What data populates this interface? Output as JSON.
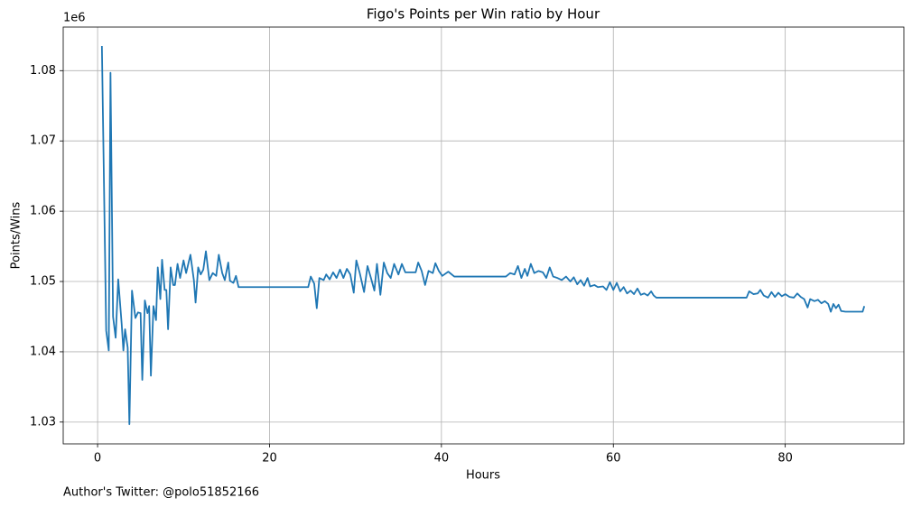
{
  "chart_data": {
    "type": "line",
    "title": "Figo's Points per Win ratio by Hour",
    "xlabel": "Hours",
    "ylabel": "Points/Wins",
    "y_offset_label": "1e6",
    "footnote": "Author's Twitter: @polo51852166",
    "x": [
      0.5,
      1.0,
      1.3,
      1.5,
      1.8,
      2.1,
      2.4,
      2.8,
      3.0,
      3.2,
      3.5,
      3.7,
      4.0,
      4.4,
      4.7,
      5.0,
      5.2,
      5.5,
      5.8,
      6.0,
      6.2,
      6.5,
      6.8,
      7.0,
      7.3,
      7.5,
      7.8,
      8.0,
      8.2,
      8.5,
      8.8,
      9.0,
      9.3,
      9.6,
      10,
      10.3,
      10.8,
      11.2,
      11.4,
      11.7,
      12,
      12.3,
      12.6,
      13,
      13.4,
      13.8,
      14.1,
      14.5,
      14.8,
      15.2,
      15.4,
      15.8,
      16.1,
      16.4,
      24.5,
      24.8,
      25.2,
      25.5,
      25.8,
      26.3,
      26.6,
      27,
      27.4,
      27.8,
      28.2,
      28.6,
      29,
      29.4,
      29.8,
      30.1,
      30.5,
      31,
      31.4,
      31.8,
      32.2,
      32.5,
      32.9,
      33.3,
      33.7,
      34.1,
      34.5,
      35,
      35.4,
      35.8,
      37,
      37.3,
      37.7,
      38.1,
      38.5,
      39,
      39.3,
      39.7,
      40.1,
      40.8,
      41.5,
      47.5,
      48,
      48.5,
      48.9,
      49.3,
      49.7,
      50,
      50.4,
      50.8,
      51.3,
      51.8,
      52.2,
      52.6,
      53,
      53.5,
      54,
      54.5,
      55,
      55.4,
      55.8,
      56.2,
      56.6,
      57,
      57.3,
      57.8,
      58.2,
      58.8,
      59.2,
      59.6,
      60,
      60.4,
      60.8,
      61.2,
      61.6,
      62,
      62.4,
      62.8,
      63.2,
      63.6,
      64,
      64.4,
      64.7,
      65,
      75.5,
      75.8,
      76.3,
      76.8,
      77.1,
      77.5,
      78,
      78.4,
      78.8,
      79.2,
      79.6,
      80,
      80.5,
      81,
      81.4,
      81.8,
      82.2,
      82.6,
      82.9,
      83.4,
      83.8,
      84.2,
      84.6,
      85,
      85.3,
      85.6,
      85.9,
      86.2,
      86.5,
      87,
      89,
      89.2
    ],
    "series": [
      {
        "color": "#1f77b4",
        "values": [
          1.0835,
          1.043,
          1.0402,
          1.0797,
          1.045,
          1.042,
          1.0503,
          1.044,
          1.0402,
          1.0432,
          1.0406,
          1.0297,
          1.0487,
          1.0448,
          1.0456,
          1.0455,
          1.036,
          1.0473,
          1.0455,
          1.0465,
          1.0366,
          1.0465,
          1.0445,
          1.052,
          1.0475,
          1.0531,
          1.0488,
          1.0488,
          1.0432,
          1.052,
          1.0495,
          1.0495,
          1.0525,
          1.0505,
          1.053,
          1.0512,
          1.0538,
          1.0502,
          1.047,
          1.052,
          1.051,
          1.0517,
          1.0543,
          1.0502,
          1.0512,
          1.0508,
          1.0538,
          1.0512,
          1.0502,
          1.0527,
          1.0501,
          1.0498,
          1.0508,
          1.0492,
          1.0492,
          1.0507,
          1.0497,
          1.0462,
          1.0505,
          1.0502,
          1.051,
          1.0503,
          1.0513,
          1.0505,
          1.0517,
          1.0505,
          1.0518,
          1.051,
          1.0484,
          1.053,
          1.0512,
          1.0485,
          1.0522,
          1.0505,
          1.0487,
          1.0525,
          1.0481,
          1.0527,
          1.0512,
          1.0505,
          1.0525,
          1.051,
          1.0525,
          1.0513,
          1.0513,
          1.0527,
          1.0515,
          1.0495,
          1.0515,
          1.0512,
          1.0526,
          1.0515,
          1.0508,
          1.0514,
          1.0507,
          1.0507,
          1.0512,
          1.051,
          1.0522,
          1.0505,
          1.0518,
          1.0508,
          1.0525,
          1.0512,
          1.0515,
          1.0513,
          1.0505,
          1.052,
          1.0507,
          1.0505,
          1.0502,
          1.0507,
          1.05,
          1.0506,
          1.0496,
          1.0502,
          1.0494,
          1.0505,
          1.0493,
          1.0495,
          1.0492,
          1.0493,
          1.0488,
          1.0499,
          1.0488,
          1.0498,
          1.0486,
          1.0492,
          1.0483,
          1.0487,
          1.0482,
          1.049,
          1.0481,
          1.0483,
          1.048,
          1.0486,
          1.048,
          1.0477,
          1.0477,
          1.0486,
          1.0482,
          1.0483,
          1.0488,
          1.048,
          1.0477,
          1.0485,
          1.0478,
          1.0484,
          1.0479,
          1.0482,
          1.0478,
          1.0477,
          1.0483,
          1.0478,
          1.0475,
          1.0463,
          1.0475,
          1.0472,
          1.0474,
          1.0469,
          1.0472,
          1.0468,
          1.0457,
          1.0468,
          1.0462,
          1.0467,
          1.0458,
          1.0457,
          1.0457,
          1.0465
        ]
      }
    ],
    "xlim": [
      -4.0,
      93.8
    ],
    "ylim": [
      1.0269,
      1.0862
    ],
    "xticks": [
      0,
      20,
      40,
      60,
      80
    ],
    "yticks": [
      1.03,
      1.04,
      1.05,
      1.06,
      1.07,
      1.08
    ],
    "grid": true
  }
}
